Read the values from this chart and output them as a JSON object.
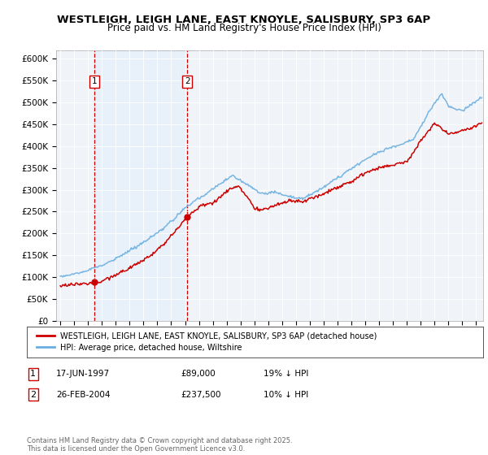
{
  "title": "WESTLEIGH, LEIGH LANE, EAST KNOYLE, SALISBURY, SP3 6AP",
  "subtitle": "Price paid vs. HM Land Registry's House Price Index (HPI)",
  "ylim": [
    0,
    620000
  ],
  "yticks": [
    0,
    50000,
    100000,
    150000,
    200000,
    250000,
    300000,
    350000,
    400000,
    450000,
    500000,
    550000,
    600000
  ],
  "ytick_labels": [
    "£0",
    "£50K",
    "£100K",
    "£150K",
    "£200K",
    "£250K",
    "£300K",
    "£350K",
    "£400K",
    "£450K",
    "£500K",
    "£550K",
    "£600K"
  ],
  "xlim_start": 1994.7,
  "xlim_end": 2025.5,
  "xticks": [
    1995,
    1996,
    1997,
    1998,
    1999,
    2000,
    2001,
    2002,
    2003,
    2004,
    2005,
    2006,
    2007,
    2008,
    2009,
    2010,
    2011,
    2012,
    2013,
    2014,
    2015,
    2016,
    2017,
    2018,
    2019,
    2020,
    2021,
    2022,
    2023,
    2024,
    2025
  ],
  "hpi_color": "#6aaee0",
  "price_color": "#cc0000",
  "sale1_x": 1997.46,
  "sale1_y": 89000,
  "sale2_x": 2004.15,
  "sale2_y": 237500,
  "vline_color": "#cc0000",
  "shading_color": "#ddeeff",
  "legend_label_price": "WESTLEIGH, LEIGH LANE, EAST KNOYLE, SALISBURY, SP3 6AP (detached house)",
  "legend_label_hpi": "HPI: Average price, detached house, Wiltshire",
  "table_row1": [
    "1",
    "17-JUN-1997",
    "£89,000",
    "19% ↓ HPI"
  ],
  "table_row2": [
    "2",
    "26-FEB-2004",
    "£237,500",
    "10% ↓ HPI"
  ],
  "footnote": "Contains HM Land Registry data © Crown copyright and database right 2025.\nThis data is licensed under the Open Government Licence v3.0.",
  "bg_color": "#ffffff",
  "plot_bg_color": "#f0f4f8"
}
